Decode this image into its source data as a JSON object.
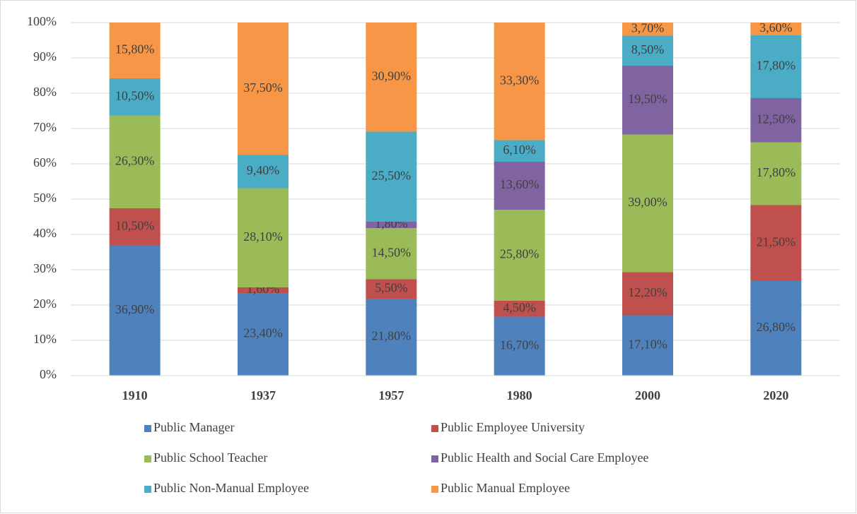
{
  "chart_data": {
    "type": "stacked_bar",
    "categories": [
      "1910",
      "1937",
      "1957",
      "1980",
      "2000",
      "2020"
    ],
    "ylim": [
      0,
      100
    ],
    "yticks": [
      {
        "value": 0,
        "label": "0%"
      },
      {
        "value": 10,
        "label": "10%"
      },
      {
        "value": 20,
        "label": "20%"
      },
      {
        "value": 30,
        "label": "30%"
      },
      {
        "value": 40,
        "label": "40%"
      },
      {
        "value": 50,
        "label": "50%"
      },
      {
        "value": 60,
        "label": "60%"
      },
      {
        "value": 70,
        "label": "70%"
      },
      {
        "value": 80,
        "label": "80%"
      },
      {
        "value": 90,
        "label": "90%"
      },
      {
        "value": 100,
        "label": "100%"
      }
    ],
    "grid": true,
    "legend": "bottom",
    "series": [
      {
        "name": "Public Manager",
        "color": "#4f81bd",
        "values": [
          36.9,
          23.4,
          21.8,
          16.7,
          17.1,
          26.8
        ],
        "value_labels": [
          "36,90%",
          "23,40%",
          "21,80%",
          "16,70%",
          "17,10%",
          "26,80%"
        ]
      },
      {
        "name": "Public Employee University",
        "color": "#c0504d",
        "values": [
          10.5,
          1.6,
          5.5,
          4.5,
          12.2,
          21.5
        ],
        "value_labels": [
          "10,50%",
          "1,60%",
          "5,50%",
          "4,50%",
          "12,20%",
          "21,50%"
        ]
      },
      {
        "name": "Public School Teacher",
        "color": "#9bbb59",
        "values": [
          26.3,
          28.1,
          14.5,
          25.8,
          39.0,
          17.8
        ],
        "value_labels": [
          "26,30%",
          "28,10%",
          "14,50%",
          "25,80%",
          "39,00%",
          "17,80%"
        ]
      },
      {
        "name": "Public Health and Social Care Employee",
        "color": "#8064a2",
        "values": [
          null,
          null,
          1.8,
          13.6,
          19.5,
          12.5
        ],
        "value_labels": [
          null,
          null,
          "1,80%",
          "13,60%",
          "19,50%",
          "12,50%"
        ]
      },
      {
        "name": "Public Non-Manual Employee",
        "color": "#4bacc6",
        "values": [
          10.5,
          9.4,
          25.5,
          6.1,
          8.5,
          17.8
        ],
        "value_labels": [
          "10,50%",
          "9,40%",
          "25,50%",
          "6,10%",
          "8,50%",
          "17,80%"
        ]
      },
      {
        "name": "Public Manual Employee",
        "color": "#f79646",
        "values": [
          15.8,
          37.5,
          30.9,
          33.3,
          3.7,
          3.6
        ],
        "value_labels": [
          "15,80%",
          "37,50%",
          "30,90%",
          "33,30%",
          "3,70%",
          "3,60%"
        ]
      }
    ]
  }
}
